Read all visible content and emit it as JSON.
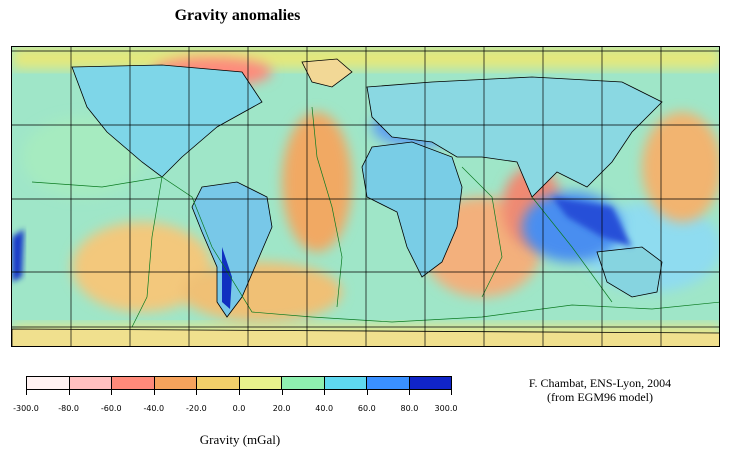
{
  "title": "Gravity anomalies",
  "map": {
    "projection": "plate-carree world map",
    "grid": true,
    "layers": [
      "coastlines",
      "plate-boundaries",
      "gravity-anomaly-field"
    ]
  },
  "legend": {
    "unit_label": "Gravity (mGal)",
    "tick_labels": [
      "-300.0",
      "-80.0",
      "-60.0",
      "-40.0",
      "-20.0",
      "0.0",
      "20.0",
      "40.0",
      "60.0",
      "80.0",
      "300.0"
    ],
    "colors": [
      "#fff2f2",
      "#ffc0c0",
      "#ff8a7a",
      "#f6a35c",
      "#f2d06a",
      "#e8f28c",
      "#8ff0b0",
      "#5fd8f0",
      "#3a90ff",
      "#1024c8"
    ]
  },
  "credit": {
    "line1": "F. Chambat, ENS-Lyon, 2004",
    "line2": "(from EGM96 model)"
  }
}
